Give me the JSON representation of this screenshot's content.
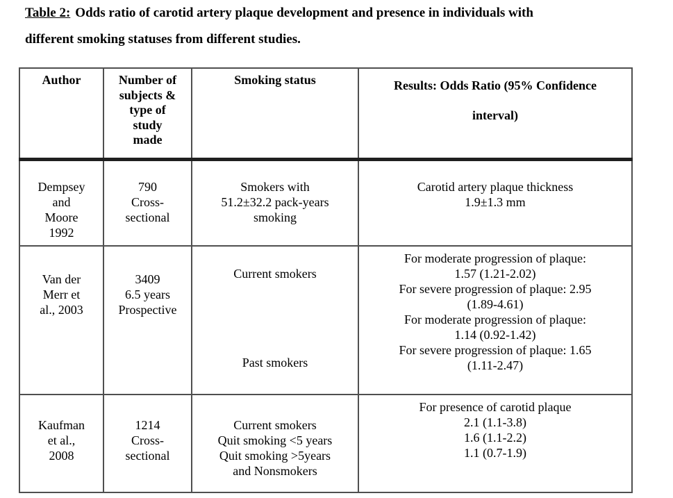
{
  "caption": {
    "label": "Table 2:",
    "line1": "Odds ratio of carotid artery plaque development and presence in individuals with",
    "line2": "different smoking statuses from different studies."
  },
  "table": {
    "headers": {
      "author": "Author",
      "subjects": "Number of\nsubjects &\ntype of\nstudy\nmade",
      "smoking": "Smoking status",
      "results": "Results: Odds Ratio (95% Confidence\ninterval)"
    },
    "rows": [
      {
        "author": "Dempsey\nand\nMoore\n1992",
        "subjects": "790\nCross-\nsectional",
        "smoking": "Smokers with\n51.2±32.2 pack-years\nsmoking",
        "results": "Carotid artery plaque thickness\n1.9±1.3 mm"
      },
      {
        "author": "Van der\nMerr et\nal., 2003",
        "subjects": "3409\n6.5 years\nProspective",
        "smoking_current": "Current smokers",
        "smoking_past": "Past smokers",
        "results": "For moderate progression of plaque:\n1.57 (1.21-2.02)\nFor severe progression of plaque: 2.95\n(1.89-4.61)\nFor moderate progression of plaque:\n1.14 (0.92-1.42)\nFor severe progression of plaque: 1.65\n(1.11-2.47)"
      },
      {
        "author": "Kaufman\net al.,\n2008",
        "subjects": "1214\nCross-\nsectional",
        "smoking": "Current smokers\nQuit smoking <5 years\nQuit smoking >5years\nand Nonsmokers",
        "results": "For presence of carotid plaque\n2.1 (1.1-3.8)\n1.6 (1.1-2.2)\n1.1 (0.7-1.9)"
      }
    ]
  },
  "colors": {
    "text": "#000000",
    "background": "#ffffff",
    "border_thin": "#4f4f4f",
    "border_thick": "#1f1f1f"
  }
}
